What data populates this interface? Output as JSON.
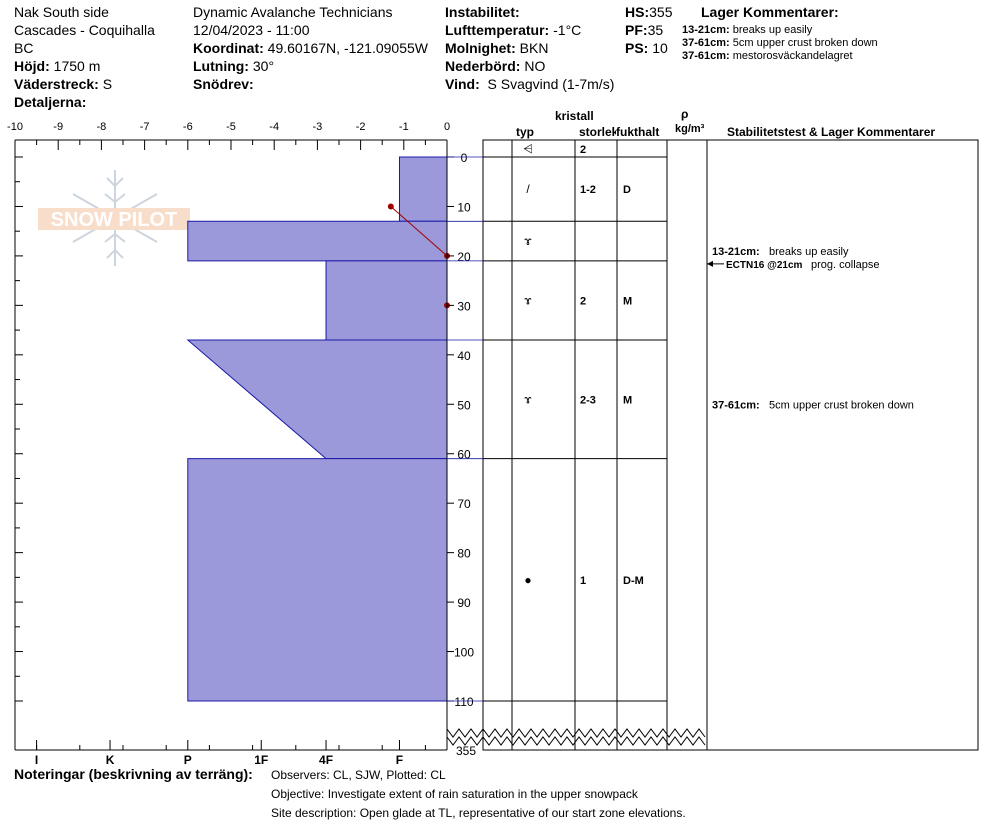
{
  "header": {
    "location": "Nak South side",
    "range": "Cascades - Coquihalla",
    "state": "BC",
    "elevation_label": "Höjd:",
    "elevation": "1750 m",
    "aspect_label": "Väderstreck:",
    "aspect": "S",
    "details_label": "Detaljerna:",
    "organization": "Dynamic Avalanche Technicians",
    "datetime": "12/04/2023 - 11:00",
    "coord_label": "Koordinat:",
    "coord": "49.60167N, -121.09055W",
    "slope_label": "Lutning:",
    "slope": "30°",
    "drift_label": "Snödrev:",
    "drift": "",
    "instability_label": "Instabilitet:",
    "instability": "",
    "airtemp_label": "Lufttemperatur:",
    "airtemp": "-1°C",
    "sky_label": "Molnighet:",
    "sky": "BKN",
    "precip_label": "Nederbörd:",
    "precip": "NO",
    "wind_label": "Vind:",
    "wind": "S Svagvind (1-7m/s)",
    "hs_label": "HS:",
    "hs": "355",
    "pf_label": "PF:",
    "pf": "35",
    "ps_label": "PS:",
    "ps": "10",
    "layer_comments_title": "Lager Kommentarer:",
    "layer_comments": [
      {
        "range": "13-21cm:",
        "text": "breaks up easily"
      },
      {
        "range": "37-61cm:",
        "text": "5cm upper crust broken down"
      },
      {
        "range": "37-61cm:",
        "text": "mestorosväckandelagret"
      }
    ]
  },
  "columns": {
    "crystal_title": "kristall",
    "type": "typ",
    "size": "storlek",
    "moisture": "fukthalt",
    "rho": "ρ",
    "density_unit": "kg/m³",
    "stability_title": "Stabilitetstest & Lager Kommentarer"
  },
  "layers": [
    {
      "top": 0,
      "bottom": 13,
      "grain_symbol": "/",
      "size": "1-2",
      "moisture": "D"
    },
    {
      "top": 13,
      "bottom": 21,
      "grain_symbol": "ɤ",
      "size": "",
      "moisture": ""
    },
    {
      "top": 21,
      "bottom": 37,
      "grain_symbol": "ɤ",
      "size": "2",
      "moisture": "M"
    },
    {
      "top": 37,
      "bottom": 61,
      "grain_symbol": "ɤ",
      "size": "2-3",
      "moisture": "M"
    },
    {
      "top": 61,
      "bottom": 110,
      "grain_symbol": "●",
      "size": "1",
      "moisture": "D-M"
    }
  ],
  "surface": {
    "grain_symbol": "⩤",
    "size": "2"
  },
  "stability": [
    {
      "depth": 21,
      "range": "13-21cm:",
      "text": "breaks up easily",
      "test_label": "ECTN16 @21cm",
      "test_text": "prog. collapse"
    },
    {
      "depth": 50,
      "range": "37-61cm:",
      "text": "5cm upper crust broken down"
    }
  ],
  "chart_data": {
    "type": "area",
    "title": "",
    "xlabel": "",
    "ylabel": "",
    "x_ticks": [
      -10,
      -9,
      -8,
      -7,
      -6,
      -5,
      -4,
      -3,
      -2,
      -1,
      0
    ],
    "xlim": [
      -10,
      0
    ],
    "hardness_ticks": [
      "I",
      "K",
      "P",
      "1F",
      "4F",
      "F"
    ],
    "hardness_tick_values": [
      -9.5,
      -7.8,
      -6,
      -4.3,
      -2.8,
      -1.1
    ],
    "y_ticks": [
      0,
      10,
      20,
      30,
      40,
      50,
      60,
      70,
      80,
      90,
      100,
      110
    ],
    "ylim": [
      0,
      110
    ],
    "hs_label": "355",
    "profile": [
      {
        "top": 0,
        "bottom": 13,
        "hardness_top": -1.1,
        "hardness_bottom": -1.1
      },
      {
        "top": 13,
        "bottom": 21,
        "hardness_top": -6,
        "hardness_bottom": -6
      },
      {
        "top": 21,
        "bottom": 37,
        "hardness_top": -2.8,
        "hardness_bottom": -2.8
      },
      {
        "top": 37,
        "bottom": 61,
        "hardness_top": -6,
        "hardness_bottom": -2.8
      },
      {
        "top": 61,
        "bottom": 110,
        "hardness_top": -6,
        "hardness_bottom": -6
      }
    ],
    "temperature_points": [
      {
        "depth": 10,
        "temp": -1.3
      },
      {
        "depth": 20,
        "temp": 0
      },
      {
        "depth": 30,
        "temp": 0
      }
    ],
    "colors": {
      "fill": "#9b99d9",
      "stroke": "#1a1aa6",
      "temp": "#a00000"
    }
  },
  "notes": {
    "label": "Noteringar (beskrivning av terräng):",
    "observers": "Observers: CL, SJW, Plotted: CL",
    "objective": "Objective: Investigate extent of rain saturation in the upper snowpack",
    "site": "Site description: Open glade at TL, representative of our start zone elevations."
  },
  "watermark": "SNOW PILOT"
}
